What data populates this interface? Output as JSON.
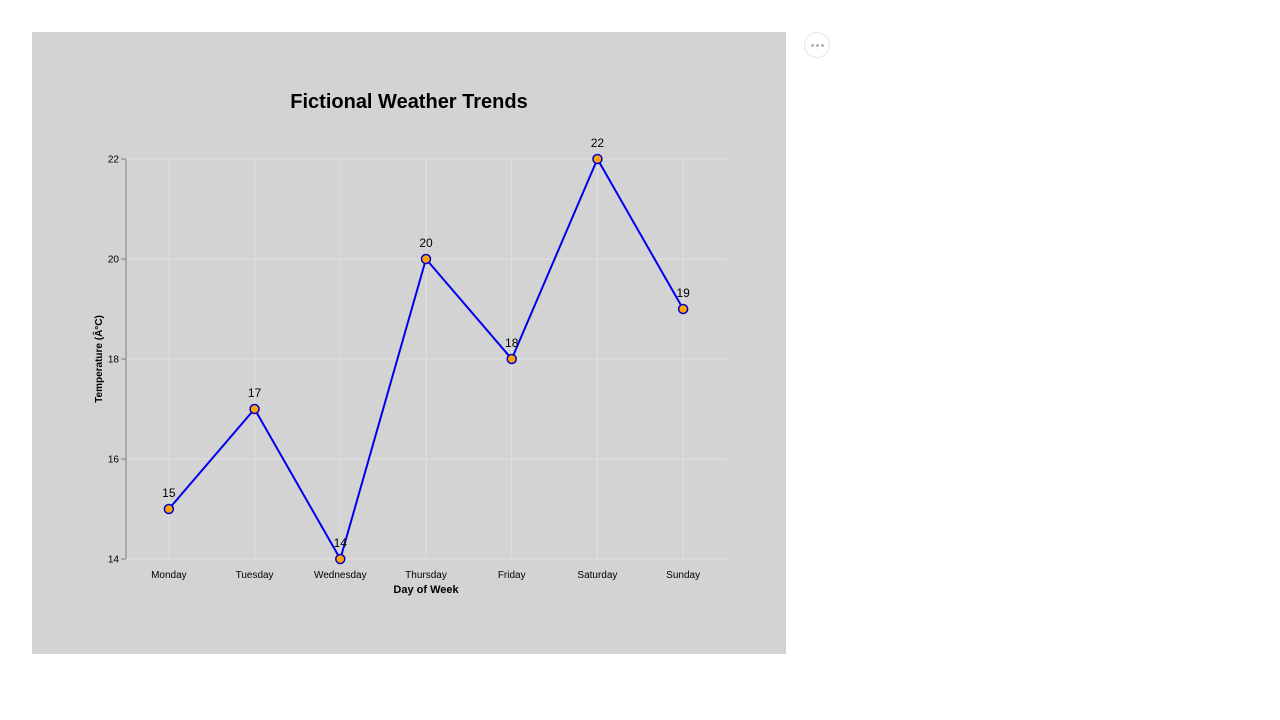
{
  "colors": {
    "panel_background": "#d3d3d3",
    "line": "#0000ee",
    "marker_fill": "#ffa500",
    "marker_stroke": "#0000cc",
    "grid": "#e0e0e0",
    "axis": "#808080"
  },
  "toolbar": {
    "more_icon": "ellipsis-icon"
  },
  "chart_data": {
    "type": "line",
    "title": "Fictional Weather Trends",
    "xlabel": "Day of Week",
    "ylabel": "Temperature (Â°C)",
    "categories": [
      "Monday",
      "Tuesday",
      "Wednesday",
      "Thursday",
      "Friday",
      "Saturday",
      "Sunday"
    ],
    "yticks": [
      "14",
      "16",
      "18",
      "20",
      "22"
    ],
    "ylim": [
      14,
      22
    ],
    "grid": true,
    "series": [
      {
        "points": [
          {
            "x": 0.5,
            "y": 15,
            "label": "15"
          },
          {
            "x": 1.5,
            "y": 17,
            "label": "17"
          },
          {
            "x": 2.5,
            "y": 14,
            "label": "14"
          },
          {
            "x": 3.5,
            "y": 20,
            "label": "20"
          },
          {
            "x": 4.5,
            "y": 18,
            "label": "18"
          },
          {
            "x": 5.5,
            "y": 22,
            "label": "22"
          },
          {
            "x": 6.5,
            "y": 19,
            "label": "19"
          }
        ]
      }
    ]
  }
}
